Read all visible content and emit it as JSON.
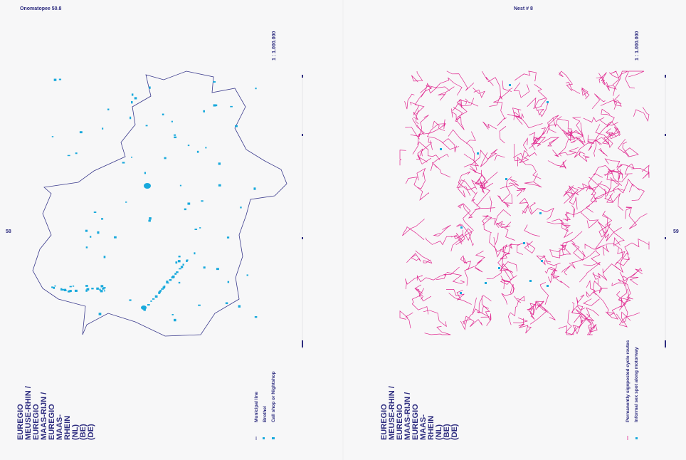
{
  "left_page": {
    "header": "Onomatopee 50.8",
    "page_number": "58",
    "scale": "1 : 1.000.000",
    "title_lines": [
      "EUREGIO",
      "MEUSE-RHIN /",
      "EUREGIO",
      "MAAS-RIJN /",
      "EUREGIO",
      "MAAS-",
      "RHEIN",
      "(NL)",
      "(BE)",
      "(DE)"
    ],
    "legend": [
      "Municipal line",
      "Brothel",
      "Call shop or Nightshop"
    ]
  },
  "right_page": {
    "header": "Nest # 8",
    "page_number": "59",
    "scale": "1 : 1.000.000",
    "title_lines": [
      "EUREGIO",
      "MEUSE-RHIN /",
      "EUREGIO",
      "MAAS-RIJN /",
      "EUREGIO",
      "MAAS-",
      "RHEIN",
      "(NL)",
      "(BE)",
      "(DE)"
    ],
    "legend": [
      "Permanently signposted cycle routes",
      "Informal sex spot along motorway"
    ]
  }
}
